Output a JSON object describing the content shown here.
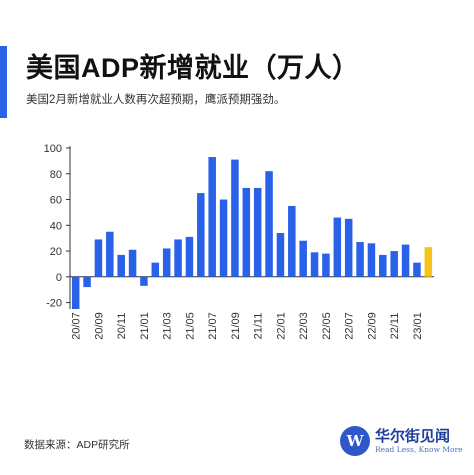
{
  "header": {
    "title": "美国ADP新增就业（万人）",
    "subtitle": "美国2月新增就业人数再次超预期，鹰派预期强劲。"
  },
  "footer": {
    "source": "数据来源：ADP研究所",
    "brand_name": "华尔街见闻",
    "brand_slogan": "Read Less, Know More",
    "brand_logo_letter": "W"
  },
  "colors": {
    "bar": "#2962e8",
    "highlight_bar": "#f5c518",
    "accent": "#2962e8",
    "axis": "#333333"
  },
  "chart_data": {
    "type": "bar",
    "title": "美国ADP新增就业（万人）",
    "categories": [
      "20/07",
      "20/08",
      "20/09",
      "20/10",
      "20/11",
      "20/12",
      "21/01",
      "21/02",
      "21/03",
      "21/04",
      "21/05",
      "21/06",
      "21/07",
      "21/08",
      "21/09",
      "21/10",
      "21/11",
      "21/12",
      "22/01",
      "22/02",
      "22/03",
      "22/04",
      "22/05",
      "22/06",
      "22/07",
      "22/08",
      "22/09",
      "22/10",
      "22/11",
      "22/12",
      "23/01",
      "23/02"
    ],
    "x_tick_labels": [
      "20/07",
      "20/09",
      "20/11",
      "21/01",
      "21/03",
      "21/05",
      "21/07",
      "21/09",
      "21/11",
      "22/01",
      "22/03",
      "22/05",
      "22/07",
      "22/09",
      "22/11",
      "23/01"
    ],
    "values": [
      -25,
      -8,
      29,
      35,
      17,
      21,
      -7,
      11,
      22,
      29,
      31,
      65,
      93,
      60,
      91,
      69,
      69,
      82,
      34,
      55,
      28,
      19,
      18,
      46,
      45,
      27,
      26,
      17,
      20,
      25,
      11,
      23
    ],
    "highlight_index": 31,
    "ylim": [
      -25,
      100
    ],
    "yticks": [
      -20,
      0,
      20,
      40,
      60,
      80,
      100
    ],
    "xlabel": "",
    "ylabel": "",
    "grid": false,
    "legend": "none"
  }
}
